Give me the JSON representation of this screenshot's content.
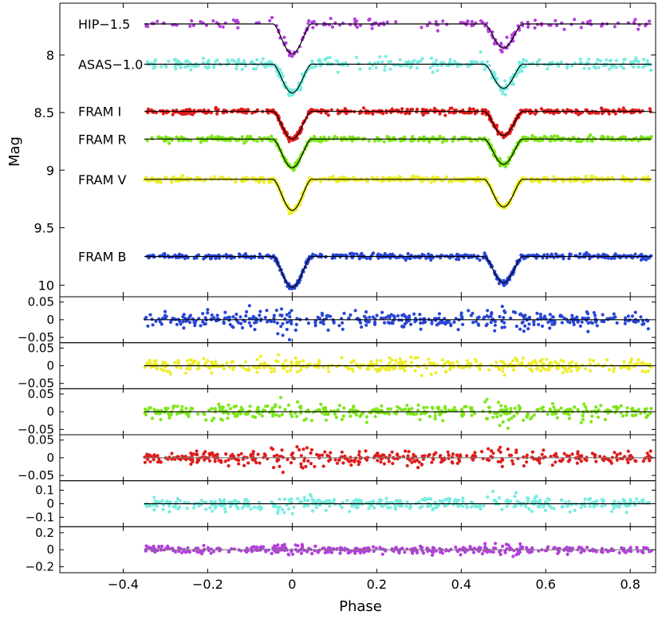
{
  "chart_data": {
    "type": "scatter",
    "title": "",
    "xlabel": "Phase",
    "ylabel": "Mag",
    "xlim": [
      -0.55,
      0.86
    ],
    "x_ticks": [
      -0.4,
      -0.2,
      0,
      0.2,
      0.4,
      0.6,
      0.8
    ],
    "x_tick_labels": [
      "−0.4",
      "−0.2",
      "0",
      "0.2",
      "0.4",
      "0.6",
      "0.8"
    ],
    "phase_range": [
      -0.35,
      0.85
    ],
    "main_panel": {
      "ylim": [
        10.1,
        7.55
      ],
      "y_ticks": [
        8,
        8.5,
        9,
        9.5,
        10
      ],
      "y_tick_labels": [
        "8",
        "8.5",
        "9",
        "9.5",
        "10"
      ],
      "series": [
        {
          "name": "HIP−1.5",
          "color": "#b33fdd",
          "baseline": 7.73,
          "primary_depth": 0.26,
          "secondary_depth": 0.21,
          "scatter": 0.02,
          "n_points": 190
        },
        {
          "name": "ASAS−1.0",
          "color": "#76ede0",
          "baseline": 8.08,
          "primary_depth": 0.25,
          "secondary_depth": 0.21,
          "scatter": 0.025,
          "n_points": 420
        },
        {
          "name": "FRAM I",
          "color": "#e01b1b",
          "baseline": 8.49,
          "primary_depth": 0.24,
          "secondary_depth": 0.21,
          "scatter": 0.011,
          "n_points": 560
        },
        {
          "name": "FRAM R",
          "color": "#7ee61b",
          "baseline": 8.73,
          "primary_depth": 0.25,
          "secondary_depth": 0.22,
          "scatter": 0.011,
          "n_points": 560
        },
        {
          "name": "FRAM V",
          "color": "#eeee2a",
          "baseline": 9.08,
          "primary_depth": 0.27,
          "secondary_depth": 0.24,
          "scatter": 0.011,
          "n_points": 560
        },
        {
          "name": "FRAM B",
          "color": "#2846d6",
          "baseline": 9.75,
          "primary_depth": 0.27,
          "secondary_depth": 0.23,
          "scatter": 0.011,
          "n_points": 560
        }
      ],
      "eclipse_centers": [
        0,
        0.5
      ],
      "eclipse_half_width": 0.045
    },
    "residual_panels": [
      {
        "series": "FRAM B",
        "color": "#2846d6",
        "ylim": [
          -0.065,
          0.065
        ],
        "y_ticks": [
          -0.05,
          0,
          0.05
        ],
        "y_tick_labels": [
          "−0.05",
          "0",
          "0.05"
        ],
        "scatter": 0.011,
        "fit_color": "#000000"
      },
      {
        "series": "FRAM V",
        "color": "#eeee2a",
        "ylim": [
          -0.065,
          0.065
        ],
        "y_ticks": [
          -0.05,
          0,
          0.05
        ],
        "y_tick_labels": [
          "−0.05",
          "0",
          "0.05"
        ],
        "scatter": 0.009,
        "fit_color": "#000000"
      },
      {
        "series": "FRAM R",
        "color": "#7ee61b",
        "ylim": [
          -0.065,
          0.065
        ],
        "y_ticks": [
          -0.05,
          0,
          0.05
        ],
        "y_tick_labels": [
          "−0.05",
          "0",
          "0.05"
        ],
        "scatter": 0.009,
        "fit_color": "#000000"
      },
      {
        "series": "FRAM I",
        "color": "#e01b1b",
        "ylim": [
          -0.065,
          0.065
        ],
        "y_ticks": [
          -0.05,
          0,
          0.05
        ],
        "y_tick_labels": [
          "−0.05",
          "0",
          "0.05"
        ],
        "scatter": 0.009,
        "fit_color": "#777777"
      },
      {
        "series": "ASAS−1.0",
        "color": "#76ede0",
        "ylim": [
          -0.17,
          0.17
        ],
        "y_ticks": [
          -0.1,
          0,
          0.1
        ],
        "y_tick_labels": [
          "−0.1",
          "0",
          "0.1"
        ],
        "scatter": 0.022,
        "fit_color": "#000000"
      },
      {
        "series": "HIP−1.5",
        "color": "#b33fdd",
        "ylim": [
          -0.27,
          0.27
        ],
        "y_ticks": [
          -0.2,
          0,
          0.2
        ],
        "y_tick_labels": [
          "−0.2",
          "0",
          "0.2"
        ],
        "scatter": 0.02,
        "fit_color": "#777777"
      }
    ]
  }
}
